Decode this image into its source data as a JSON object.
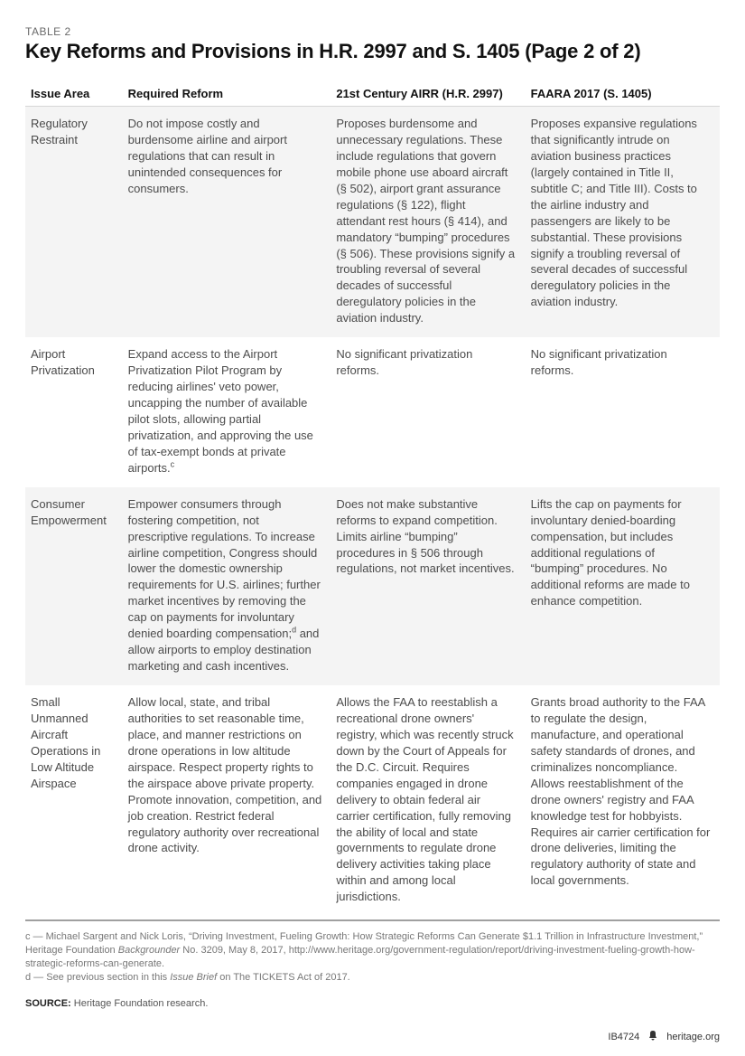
{
  "table_label": "TABLE 2",
  "title": "Key Reforms and Provisions in H.R. 2997 and S. 1405 (Page 2 of 2)",
  "columns": [
    "Issue Area",
    "Required Reform",
    "21st Century AIRR (H.R. 2997)",
    "FAARA 2017 (S. 1405)"
  ],
  "rows": [
    {
      "issue": "Regulatory Restraint",
      "reform": "Do not impose costly and burdensome airline and airport regulations that can result in unintended consequences for consumers.",
      "airr": "Proposes burdensome and unnecessary regulations. These include regulations that govern mobile phone use aboard aircraft (§ 502), airport grant assurance regulations (§ 122), flight attendant rest hours (§ 414), and mandatory “bumping” procedures (§ 506). These provisions signify a troubling reversal of several decades of successful deregulatory policies in the aviation industry.",
      "faara": "Proposes expansive regulations that significantly intrude on aviation business practices (largely contained in Title II, subtitle C; and Title III). Costs to the airline industry and passengers are likely to be substantial. These provisions signify a troubling reversal of several decades of successful deregulatory policies in the aviation industry."
    },
    {
      "issue": "Airport Privatization",
      "reform_html": "Expand access to the Airport Privatization Pilot Program by reducing airlines' veto power, uncapping the number of available pilot slots, allowing partial privatization, and approving the use of tax-exempt bonds at private airports.<span class=\"sup\">c</span>",
      "airr": "No significant privatization reforms.",
      "faara": "No significant privatization reforms."
    },
    {
      "issue": "Consumer Empowerment",
      "reform_html": "Empower consumers through fostering competition, not prescriptive regulations. To increase airline competition, Congress should lower the domestic ownership requirements for U.S. airlines; further market incentives by removing the cap on payments for involuntary denied boarding compensation;<span class=\"sup\">d</span> and allow airports to employ destination marketing and cash incentives.",
      "airr": "Does not make substantive reforms to expand competition. Limits airline “bumping” procedures in § 506 through regulations, not market incentives.",
      "faara": "Lifts the cap on payments for involuntary denied-boarding compensation, but includes additional regulations of “bumping” procedures. No additional reforms are made to enhance competition."
    },
    {
      "issue": "Small Unmanned Aircraft Operations in Low Altitude Airspace",
      "reform": "Allow local, state, and tribal authorities to set reasonable time, place, and manner restrictions on drone operations in low altitude airspace. Respect property rights to the airspace above private property. Promote innovation, competition, and job creation. Restrict federal regulatory authority over recreational drone activity.",
      "airr": "Allows the FAA to reestablish a recreational drone owners' registry, which was recently struck down by the Court of Appeals for the D.C. Circuit. Requires companies engaged in drone delivery to obtain federal air carrier certification, fully removing the ability of local and state governments to regulate drone delivery activities taking place within and among local jurisdictions.",
      "faara": "Grants broad authority to the FAA to regulate the design, manufacture, and operational safety standards of drones, and criminalizes noncompliance. Allows reestablishment of the drone owners' registry and FAA knowledge test for hobbyists. Requires air carrier certification for drone deliveries, limiting the regulatory authority of state and local governments."
    }
  ],
  "footnote_c_html": "c — Michael Sargent and Nick Loris, “Driving Investment, Fueling Growth: How Strategic Reforms Can Generate $1.1 Trillion in Infrastructure Investment,” Heritage Foundation <span class=\"italic\">Backgrounder</span> No. 3209, May 8, 2017, http://www.heritage.org/government-regulation/report/driving-investment-fueling-growth-how-strategic-reforms-can-generate.",
  "footnote_d_html": "d — See previous section in this <span class=\"italic\">Issue Brief</span> on The TICKETS Act of 2017.",
  "source_label": "SOURCE:",
  "source_text": "Heritage Foundation research.",
  "footer_id": "IB4724",
  "footer_site": "heritage.org",
  "colors": {
    "band_bg": "#f4f4f4",
    "rule": "#a0a0a0",
    "text_muted": "#777"
  }
}
